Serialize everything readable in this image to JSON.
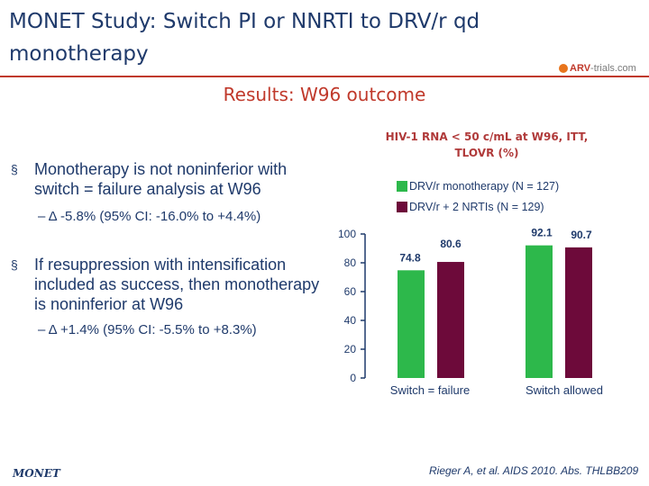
{
  "slide": {
    "title": "MONET Study: Switch PI or NNRTI to DRV/r qd monotherapy",
    "subtitle": "Results: W96 outcome",
    "logo": {
      "brand": "ARV",
      "rest": "-trials.com"
    },
    "bullets": [
      {
        "text": "Monotherapy is not noninferior with switch = failure analysis at W96",
        "sub": "– Δ -5.8% (95% CI: -16.0% to +4.4%)"
      },
      {
        "text": "If resuppression with intensification included as success, then monotherapy is noninferior at W96",
        "sub": "– Δ +1.4% (95% CI: -5.5% to +8.3%)"
      }
    ],
    "bullet_symbol": "§",
    "footer_left": "MONET",
    "footer_right": "Rieger A, et al. AIDS 2010. Abs. THLBB209"
  },
  "colors": {
    "title": "#1f3a6b",
    "accent_red": "#c0392b",
    "series_green": "#2db84b",
    "series_maroon": "#6d0a3a"
  },
  "chart_data": {
    "type": "bar",
    "title": "HIV-1 RNA < 50 c/mL at W96, ITT, TLOVR (%)",
    "categories": [
      "Switch = failure",
      "Switch allowed"
    ],
    "series": [
      {
        "name": "DRV/r monotherapy (N = 127)",
        "values": [
          74.8,
          92.1
        ],
        "color": "#2db84b"
      },
      {
        "name": "DRV/r + 2 NRTIs (N = 129)",
        "values": [
          80.6,
          90.7
        ],
        "color": "#6d0a3a"
      }
    ],
    "ylim": [
      0,
      100
    ],
    "yticks": [
      0,
      20,
      40,
      60,
      80,
      100
    ],
    "xlabel": "",
    "ylabel": "",
    "grid": false,
    "legend_position": "top-right"
  }
}
